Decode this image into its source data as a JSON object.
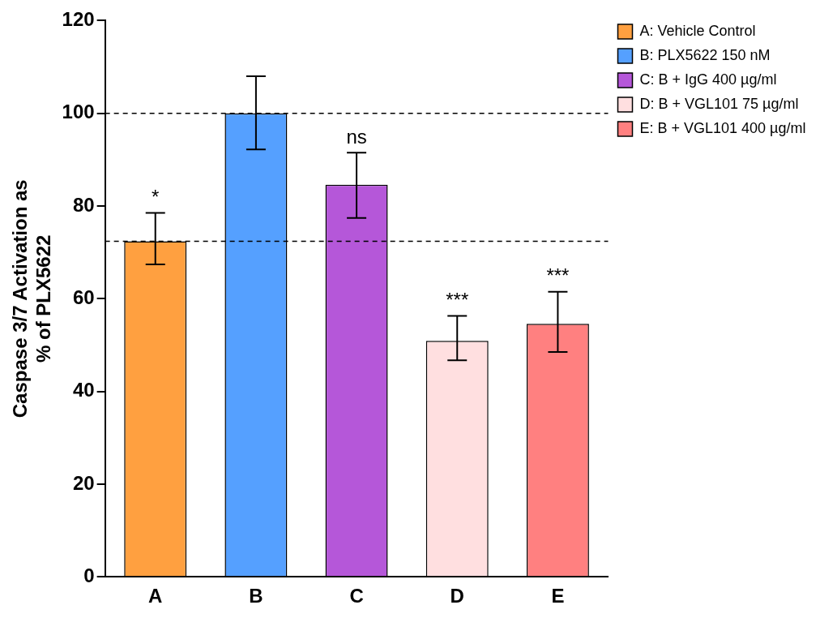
{
  "chart_data": {
    "type": "bar",
    "ylabel": "Caspase 3/7 Activation as\n% of PLX5622",
    "categories": [
      "A",
      "B",
      "C",
      "D",
      "E"
    ],
    "series": [
      {
        "name": "A: Vehicle Control",
        "color": "#ffa040",
        "values": [
          72.4,
          null,
          null,
          null,
          null
        ],
        "errors": [
          [
            67.4,
            78.5
          ],
          null,
          null,
          null,
          null
        ]
      },
      {
        "name": "B: PLX5622 150 nM",
        "color": "#55a0ff",
        "values": [
          null,
          100,
          null,
          null,
          null
        ],
        "errors": [
          null,
          [
            92.2,
            108
          ],
          null,
          null,
          null
        ]
      },
      {
        "name": "C: B + IgG 400 µg/ml",
        "color": "#b557d9",
        "values": [
          null,
          null,
          84.6,
          null,
          null
        ],
        "errors": [
          null,
          null,
          [
            77.4,
            91.5
          ],
          null,
          null
        ]
      },
      {
        "name": "D: B + VGL101 75 µg/ml",
        "color": "#ffdfe0",
        "values": [
          null,
          null,
          null,
          50.9,
          null
        ],
        "errors": [
          null,
          null,
          null,
          [
            46.7,
            56.3
          ],
          null
        ]
      },
      {
        "name": "E: B + VGL101 400 µg/ml",
        "color": "#ff8080",
        "values": [
          null,
          null,
          null,
          null,
          54.6
        ],
        "errors": [
          null,
          null,
          null,
          null,
          [
            48.5,
            61.5
          ]
        ]
      }
    ],
    "ylim": [
      0,
      120
    ],
    "yticks": [
      0,
      20,
      40,
      60,
      80,
      100,
      120
    ],
    "grid": false,
    "legend": "top right",
    "ref_lines": [
      {
        "axis": "y",
        "value": 100,
        "line_style": "dashed"
      },
      {
        "axis": "y",
        "value": 72.4,
        "line_style": "dashed"
      }
    ],
    "annotations": [
      {
        "text": "*",
        "x": "A",
        "y": 78.5
      },
      {
        "text": "ns",
        "x": "C",
        "y": 91.5
      },
      {
        "text": "***",
        "x": "D",
        "y": 56.3
      },
      {
        "text": "***",
        "x": "E",
        "y": 61.5
      }
    ]
  }
}
